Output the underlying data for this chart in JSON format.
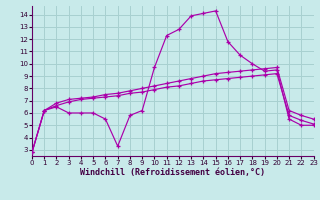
{
  "xlabel": "Windchill (Refroidissement éolien,°C)",
  "background_color": "#c8eaea",
  "grid_color": "#a8d0d0",
  "line_color": "#aa00aa",
  "xlim": [
    0,
    23
  ],
  "ylim": [
    2.5,
    14.7
  ],
  "yticks": [
    3,
    4,
    5,
    6,
    7,
    8,
    9,
    10,
    11,
    12,
    13,
    14
  ],
  "xticks": [
    0,
    1,
    2,
    3,
    4,
    5,
    6,
    7,
    8,
    9,
    10,
    11,
    12,
    13,
    14,
    15,
    16,
    17,
    18,
    19,
    20,
    21,
    22,
    23
  ],
  "line1_x": [
    0,
    1,
    2,
    3,
    4,
    5,
    6,
    7,
    8,
    9,
    10,
    11,
    12,
    13,
    14,
    15,
    16,
    17,
    18,
    19,
    20,
    21,
    22,
    23
  ],
  "line1_y": [
    2.8,
    6.2,
    6.5,
    6.0,
    6.0,
    6.0,
    5.5,
    3.3,
    5.8,
    6.2,
    9.7,
    12.3,
    12.8,
    13.9,
    14.1,
    14.3,
    11.8,
    10.7,
    10.0,
    9.4,
    9.5,
    5.5,
    5.0,
    5.0
  ],
  "line2_x": [
    0,
    1,
    2,
    3,
    4,
    5,
    6,
    7,
    8,
    9,
    10,
    11,
    12,
    13,
    14,
    15,
    16,
    17,
    18,
    19,
    20,
    21,
    22,
    23
  ],
  "line2_y": [
    2.8,
    6.2,
    6.8,
    7.1,
    7.2,
    7.3,
    7.5,
    7.6,
    7.8,
    8.0,
    8.2,
    8.4,
    8.6,
    8.8,
    9.0,
    9.2,
    9.3,
    9.4,
    9.5,
    9.6,
    9.7,
    6.2,
    5.8,
    5.5
  ],
  "line3_x": [
    0,
    1,
    2,
    3,
    4,
    5,
    6,
    7,
    8,
    9,
    10,
    11,
    12,
    13,
    14,
    15,
    16,
    17,
    18,
    19,
    20,
    21,
    22,
    23
  ],
  "line3_y": [
    2.8,
    6.2,
    6.6,
    6.9,
    7.1,
    7.2,
    7.3,
    7.4,
    7.6,
    7.7,
    7.9,
    8.1,
    8.2,
    8.4,
    8.6,
    8.7,
    8.8,
    8.9,
    9.0,
    9.1,
    9.2,
    5.8,
    5.4,
    5.1
  ]
}
